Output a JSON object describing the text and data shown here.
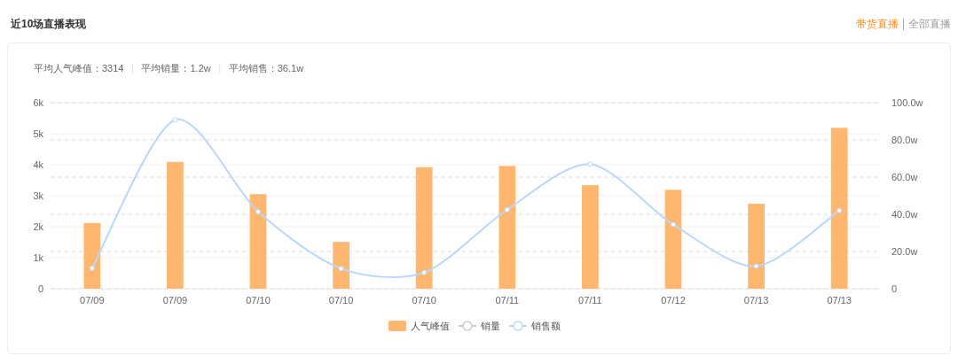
{
  "chart_data": {
    "type": "bar",
    "title": "近10场直播表现",
    "annotations": [
      "带货直播",
      "全部直播",
      "平均人气峰值：3314",
      "平均销量：1.2w",
      "平均销售：36.1w"
    ],
    "categories": [
      "07/09",
      "07/09",
      "07/10",
      "07/10",
      "07/10",
      "07/11",
      "07/11",
      "07/12",
      "07/13",
      "07/13"
    ],
    "series": [
      {
        "name": "人气峰值",
        "color": "#ffb66e",
        "values": [
          2120,
          4090,
          3050,
          1510,
          3920,
          3960,
          3340,
          3190,
          2740,
          5190
        ]
      },
      {
        "name": "销量",
        "type": "line",
        "color": "#cccccc",
        "values": [
          null,
          null,
          null,
          null,
          null,
          null,
          null,
          null,
          null,
          null
        ]
      },
      {
        "name": "销售额",
        "type": "line",
        "axis": "y2",
        "color": "#b8d8fb",
        "values": [
          11.0,
          90.8,
          41.4,
          10.8,
          8.7,
          42.5,
          67.0,
          34.5,
          12.1,
          42.0
        ]
      }
    ],
    "ylim": [
      0,
      6000
    ],
    "yticks": [
      {
        "value": 0,
        "label": "0"
      },
      {
        "value": 1000,
        "label": "1k"
      },
      {
        "value": 2000,
        "label": "2k"
      },
      {
        "value": 3000,
        "label": "3k"
      },
      {
        "value": 4000,
        "label": "4k"
      },
      {
        "value": 5000,
        "label": "5k"
      },
      {
        "value": 6000,
        "label": "6k"
      }
    ],
    "y2lim": [
      0,
      100
    ],
    "y2ticks": [
      {
        "value": 0,
        "label": "0"
      },
      {
        "value": 20,
        "label": "20.0w"
      },
      {
        "value": 40,
        "label": "40.0w"
      },
      {
        "value": 60,
        "label": "60.0w"
      },
      {
        "value": 80,
        "label": "80.0w"
      },
      {
        "value": 100,
        "label": "100.0w"
      }
    ],
    "grid": true,
    "legend": "bottom",
    "marker": "circle",
    "line_style": "solid"
  }
}
